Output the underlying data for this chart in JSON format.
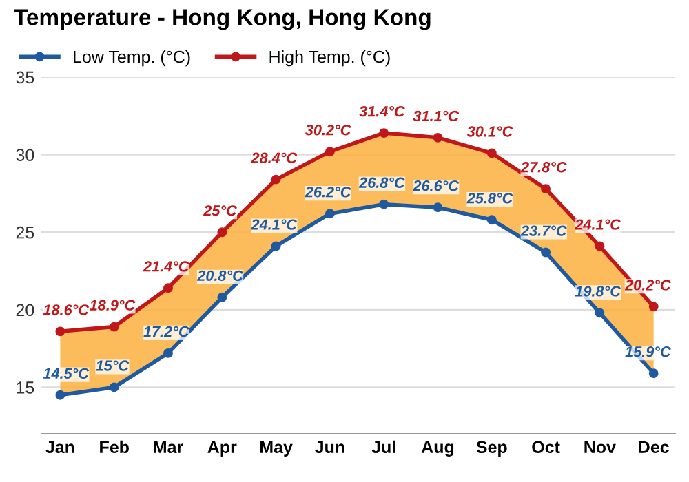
{
  "chart_data": {
    "type": "line",
    "title": "Temperature - Hong Kong, Hong Kong",
    "categories": [
      "Jan",
      "Feb",
      "Mar",
      "Apr",
      "May",
      "Jun",
      "Jul",
      "Aug",
      "Sep",
      "Oct",
      "Nov",
      "Dec"
    ],
    "series": [
      {
        "name": "Low Temp. (°C)",
        "color": "#1f5aa0",
        "values": [
          14.5,
          15,
          17.2,
          20.8,
          24.1,
          26.2,
          26.8,
          26.6,
          25.8,
          23.7,
          19.8,
          15.9
        ],
        "value_labels": [
          "14.5°C",
          "15°C",
          "17.2°C",
          "20.8°C",
          "24.1°C",
          "26.2°C",
          "26.8°C",
          "26.6°C",
          "25.8°C",
          "23.7°C",
          "19.8°C",
          "15.9°C"
        ]
      },
      {
        "name": "High Temp. (°C)",
        "color": "#c0171a",
        "values": [
          18.6,
          18.9,
          21.4,
          25,
          28.4,
          30.2,
          31.4,
          31.1,
          30.1,
          27.8,
          24.1,
          20.2
        ],
        "lower": [
          14.5,
          15,
          17.2,
          20.8,
          24.1,
          26.2,
          26.8,
          26.6,
          25.8,
          23.7,
          19.8,
          15.9
        ],
        "upper": [
          18.6,
          18.9,
          21.4,
          25,
          28.4,
          30.2,
          31.4,
          31.1,
          30.1,
          27.8,
          24.1,
          20.2
        ],
        "value_labels": [
          "18.6°C",
          "18.9°C",
          "21.4°C",
          "25°C",
          "28.4°C",
          "30.2°C",
          "31.4°C",
          "31.1°C",
          "30.1°C",
          "27.8°C",
          "24.1°C",
          "20.2°C"
        ]
      }
    ],
    "ylim": [
      12,
      35
    ],
    "yticks": [
      15,
      20,
      25,
      30,
      35
    ],
    "grid": "y",
    "legend": "top left",
    "marker": "circle",
    "line_style": "solid"
  }
}
